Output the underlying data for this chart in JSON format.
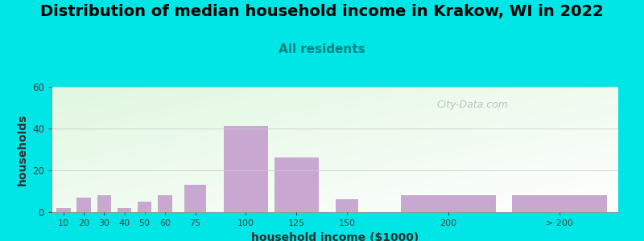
{
  "title": "Distribution of median household income in Krakow, WI in 2022",
  "subtitle": "All residents",
  "xlabel": "household income ($1000)",
  "ylabel": "households",
  "bar_values": [
    2,
    7,
    8,
    2,
    5,
    8,
    13,
    41,
    26,
    6,
    8,
    8
  ],
  "bar_color": "#c8a8d0",
  "ylim": [
    0,
    60
  ],
  "yticks": [
    0,
    20,
    40,
    60
  ],
  "background_color": "#00e5e5",
  "title_fontsize": 14,
  "subtitle_fontsize": 11,
  "subtitle_color": "#008080",
  "axis_label_fontsize": 10,
  "watermark_text": "City-Data.com",
  "bar_centers": [
    10,
    20,
    30,
    40,
    50,
    60,
    75,
    100,
    125,
    150,
    200,
    255
  ],
  "bar_widths": [
    8,
    8,
    8,
    8,
    8,
    8,
    12,
    23,
    23,
    12,
    48,
    48
  ],
  "tick_positions": [
    10,
    20,
    30,
    40,
    50,
    60,
    75,
    100,
    125,
    150,
    200,
    255
  ],
  "tick_labels": [
    "10",
    "20",
    "30",
    "40",
    "50",
    "60",
    "75",
    "100",
    "125",
    "150",
    "200",
    "> 200"
  ],
  "xlim": [
    4,
    284
  ]
}
